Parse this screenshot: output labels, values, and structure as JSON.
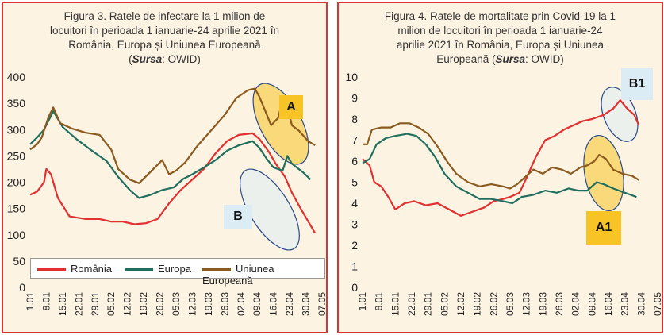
{
  "colors": {
    "romania": "#e03030",
    "europa": "#1f6e5e",
    "ue": "#8b5a1e",
    "panel_bg": "#fdf3e3",
    "frame": "#dd3333",
    "callout_yellow": "#f7c325",
    "callout_blue": "#dcecf5"
  },
  "x_ticks": [
    "1.01",
    "8.01",
    "15.01",
    "22.01",
    "29.01",
    "05.02",
    "12.02",
    "19.02",
    "26.02",
    "05.03",
    "12.03",
    "19.03",
    "26.03",
    "02.04",
    "09.04",
    "16.04",
    "23.04",
    "30.04",
    "07.05"
  ],
  "chart_data": [
    {
      "type": "line",
      "title_lines": [
        "Figura 3. Ratele de infectare  la 1 milion de",
        "locuitori în perioada 1 ianuarie-24 aprilie 2021 în",
        "România, Europa și Uniunea Europeană"
      ],
      "source_lines": [
        {
          "pre": "(",
          "bold": "Sursa",
          "post": ": OWID)"
        }
      ],
      "ylim": [
        0,
        400
      ],
      "yticks": [
        "0",
        "50",
        "100",
        "150",
        "200",
        "250",
        "300",
        "350",
        "400"
      ],
      "xlim_days": [
        0,
        126
      ],
      "legend": {
        "placement": "bottom",
        "labels": [
          "România",
          "Europa",
          "Uniunea Europeană"
        ]
      },
      "callouts": [
        {
          "label": "A",
          "color": "yellow"
        },
        {
          "label": "B",
          "color": "blue"
        }
      ],
      "series": [
        {
          "name": "România",
          "points": [
            [
              0,
              176
            ],
            [
              3,
              182
            ],
            [
              6,
              200
            ],
            [
              7,
              225
            ],
            [
              9,
              215
            ],
            [
              12,
              170
            ],
            [
              17,
              135
            ],
            [
              24,
              130
            ],
            [
              30,
              130
            ],
            [
              35,
              125
            ],
            [
              40,
              125
            ],
            [
              45,
              120
            ],
            [
              50,
              122
            ],
            [
              55,
              130
            ],
            [
              60,
              160
            ],
            [
              65,
              185
            ],
            [
              70,
              205
            ],
            [
              75,
              225
            ],
            [
              80,
              255
            ],
            [
              85,
              278
            ],
            [
              90,
              290
            ],
            [
              96,
              293
            ],
            [
              99,
              282
            ],
            [
              103,
              258
            ],
            [
              106,
              235
            ],
            [
              110,
              210
            ],
            [
              113,
              180
            ],
            [
              117,
              148
            ],
            [
              121,
              118
            ],
            [
              123,
              103
            ]
          ]
        },
        {
          "name": "Europa",
          "points": [
            [
              0,
              272
            ],
            [
              3,
              285
            ],
            [
              6,
              300
            ],
            [
              10,
              335
            ],
            [
              14,
              305
            ],
            [
              20,
              282
            ],
            [
              26,
              262
            ],
            [
              33,
              240
            ],
            [
              38,
              210
            ],
            [
              43,
              185
            ],
            [
              47,
              170
            ],
            [
              52,
              176
            ],
            [
              57,
              185
            ],
            [
              62,
              190
            ],
            [
              66,
              206
            ],
            [
              70,
              215
            ],
            [
              75,
              228
            ],
            [
              80,
              242
            ],
            [
              85,
              260
            ],
            [
              90,
              270
            ],
            [
              96,
              278
            ],
            [
              99,
              265
            ],
            [
              102,
              245
            ],
            [
              105,
              228
            ],
            [
              109,
              222
            ],
            [
              111,
              250
            ],
            [
              113,
              235
            ],
            [
              118,
              218
            ],
            [
              121,
              205
            ]
          ]
        },
        {
          "name": "Uniunea Europeană",
          "points": [
            [
              0,
              262
            ],
            [
              3,
              272
            ],
            [
              5,
              285
            ],
            [
              8,
              325
            ],
            [
              10,
              342
            ],
            [
              13,
              312
            ],
            [
              18,
              302
            ],
            [
              24,
              294
            ],
            [
              30,
              290
            ],
            [
              35,
              262
            ],
            [
              38,
              225
            ],
            [
              43,
              205
            ],
            [
              47,
              198
            ],
            [
              52,
              220
            ],
            [
              57,
              242
            ],
            [
              60,
              215
            ],
            [
              63,
              222
            ],
            [
              67,
              238
            ],
            [
              72,
              268
            ],
            [
              78,
              298
            ],
            [
              84,
              328
            ],
            [
              89,
              360
            ],
            [
              94,
              375
            ],
            [
              97,
              378
            ],
            [
              99,
              362
            ],
            [
              102,
              330
            ],
            [
              104,
              308
            ],
            [
              107,
              322
            ],
            [
              109,
              355
            ],
            [
              111,
              345
            ],
            [
              113,
              308
            ],
            [
              116,
              298
            ],
            [
              120,
              278
            ],
            [
              123,
              270
            ]
          ]
        }
      ]
    },
    {
      "type": "line",
      "title_lines": [
        "Figura 4. Ratele de mortalitate prin Covid-19 la 1",
        "milion de locuitori în perioada 1 ianuarie-24",
        "aprilie 2021 în România, Europa și Uniunea"
      ],
      "source_lines": [
        {
          "pre": "Europeană (",
          "bold": "Sursa",
          "post": ": OWID)"
        }
      ],
      "ylim": [
        0,
        10
      ],
      "yticks": [
        "0",
        "1",
        "2",
        "3",
        "4",
        "5",
        "6",
        "7",
        "8",
        "9",
        "10"
      ],
      "xlim_days": [
        0,
        126
      ],
      "callouts": [
        {
          "label": "B1",
          "color": "blue"
        },
        {
          "label": "A1",
          "color": "yellow"
        }
      ],
      "series": [
        {
          "name": "România",
          "points": [
            [
              0,
              6.1
            ],
            [
              3,
              5.8
            ],
            [
              5,
              5.0
            ],
            [
              8,
              4.8
            ],
            [
              11,
              4.3
            ],
            [
              14,
              3.7
            ],
            [
              18,
              4.0
            ],
            [
              22,
              4.1
            ],
            [
              27,
              3.9
            ],
            [
              32,
              4.0
            ],
            [
              37,
              3.7
            ],
            [
              42,
              3.4
            ],
            [
              47,
              3.6
            ],
            [
              52,
              3.8
            ],
            [
              56,
              4.1
            ],
            [
              60,
              4.2
            ],
            [
              63,
              4.3
            ],
            [
              67,
              4.5
            ],
            [
              70,
              5.2
            ],
            [
              74,
              6.2
            ],
            [
              78,
              7.0
            ],
            [
              82,
              7.2
            ],
            [
              86,
              7.5
            ],
            [
              90,
              7.7
            ],
            [
              94,
              7.9
            ],
            [
              98,
              8.0
            ],
            [
              103,
              8.2
            ],
            [
              107,
              8.5
            ],
            [
              110,
              8.9
            ],
            [
              113,
              8.5
            ],
            [
              116,
              8.2
            ],
            [
              118,
              7.7
            ]
          ]
        },
        {
          "name": "Europa",
          "points": [
            [
              0,
              5.9
            ],
            [
              3,
              6.1
            ],
            [
              6,
              6.8
            ],
            [
              10,
              7.1
            ],
            [
              14,
              7.2
            ],
            [
              19,
              7.3
            ],
            [
              23,
              7.2
            ],
            [
              27,
              6.8
            ],
            [
              31,
              6.2
            ],
            [
              35,
              5.4
            ],
            [
              40,
              4.8
            ],
            [
              45,
              4.5
            ],
            [
              50,
              4.2
            ],
            [
              55,
              4.2
            ],
            [
              60,
              4.1
            ],
            [
              64,
              4.0
            ],
            [
              68,
              4.3
            ],
            [
              73,
              4.4
            ],
            [
              78,
              4.6
            ],
            [
              83,
              4.5
            ],
            [
              88,
              4.7
            ],
            [
              92,
              4.6
            ],
            [
              96,
              4.6
            ],
            [
              100,
              5.0
            ],
            [
              103,
              4.9
            ],
            [
              107,
              4.7
            ],
            [
              112,
              4.5
            ],
            [
              117,
              4.3
            ]
          ]
        },
        {
          "name": "Uniunea Europeană",
          "points": [
            [
              0,
              6.8
            ],
            [
              2,
              6.8
            ],
            [
              4,
              7.5
            ],
            [
              8,
              7.6
            ],
            [
              12,
              7.6
            ],
            [
              16,
              7.8
            ],
            [
              20,
              7.8
            ],
            [
              24,
              7.6
            ],
            [
              28,
              7.3
            ],
            [
              32,
              6.7
            ],
            [
              36,
              6.0
            ],
            [
              40,
              5.4
            ],
            [
              45,
              5.0
            ],
            [
              50,
              4.8
            ],
            [
              55,
              4.9
            ],
            [
              60,
              4.8
            ],
            [
              63,
              4.7
            ],
            [
              66,
              4.9
            ],
            [
              69,
              5.2
            ],
            [
              73,
              5.6
            ],
            [
              77,
              5.4
            ],
            [
              81,
              5.7
            ],
            [
              85,
              5.6
            ],
            [
              89,
              5.4
            ],
            [
              93,
              5.7
            ],
            [
              96,
              5.8
            ],
            [
              99,
              6.0
            ],
            [
              101,
              6.3
            ],
            [
              104,
              6.1
            ],
            [
              107,
              5.6
            ],
            [
              111,
              5.4
            ],
            [
              115,
              5.3
            ],
            [
              118,
              5.1
            ]
          ]
        }
      ]
    }
  ]
}
